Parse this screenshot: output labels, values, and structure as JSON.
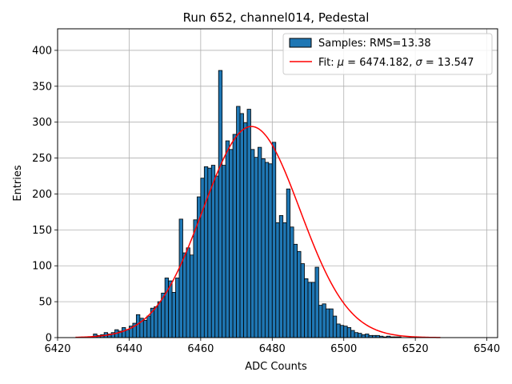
{
  "chart_data": {
    "type": "bar",
    "title": "Run 652, channel014, Pedestal",
    "xlabel": "ADC Counts",
    "ylabel": "Entries",
    "xlim": [
      6420,
      6543
    ],
    "ylim": [
      0,
      430
    ],
    "xticks": [
      "6420",
      "6440",
      "6460",
      "6480",
      "6500",
      "6520",
      "6540"
    ],
    "yticks": [
      "0",
      "50",
      "100",
      "150",
      "200",
      "250",
      "300",
      "350",
      "400"
    ],
    "grid": true,
    "legend_position": "top-right",
    "legend": {
      "samples": "Samples: RMS=13.38",
      "fit_prefix": "Fit: ",
      "fit_mu_symbol": "μ",
      "fit_mu_value": " = 6474.182, ",
      "fit_sigma_symbol": "σ",
      "fit_sigma_value": " = 13.547"
    },
    "colors": {
      "bars": "#1f77b4",
      "bar_edge": "#000000",
      "fit": "#ff0000",
      "grid": "#b0b0b0"
    },
    "histogram": {
      "bin_start": 6425,
      "bin_width": 1,
      "counts": [
        0,
        0,
        0,
        0,
        0,
        5,
        3,
        4,
        7,
        5,
        7,
        11,
        9,
        14,
        11,
        16,
        20,
        32,
        27,
        24,
        30,
        41,
        43,
        50,
        62,
        83,
        79,
        63,
        83,
        165,
        118,
        125,
        115,
        164,
        196,
        222,
        238,
        236,
        240,
        225,
        372,
        240,
        274,
        262,
        283,
        322,
        312,
        299,
        318,
        262,
        251,
        265,
        249,
        244,
        242,
        272,
        160,
        170,
        160,
        207,
        154,
        130,
        120,
        103,
        82,
        77,
        77,
        98,
        45,
        47,
        40,
        40,
        30,
        19,
        17,
        16,
        14,
        10,
        7,
        6,
        4,
        5,
        3,
        3,
        3,
        2,
        1,
        2,
        1,
        1,
        1,
        0
      ]
    },
    "fit": {
      "mu": 6474.182,
      "sigma": 13.547,
      "amplitude": 294,
      "x_range": [
        6425,
        6527
      ]
    }
  }
}
